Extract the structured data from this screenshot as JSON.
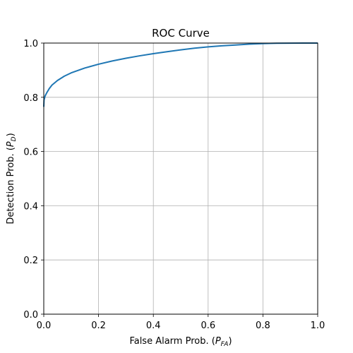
{
  "chart_data": {
    "type": "line",
    "title": "ROC Curve",
    "xlabel": {
      "main": "False Alarm Prob. (",
      "sym": "P",
      "sub": "FA",
      "close": ")"
    },
    "ylabel": {
      "main": "Detection Prob. (",
      "sym": "P",
      "sub": "D",
      "close": ")"
    },
    "xlim": [
      0.0,
      1.0
    ],
    "ylim": [
      0.0,
      1.0
    ],
    "xticks": [
      "0.0",
      "0.2",
      "0.4",
      "0.6",
      "0.8",
      "1.0"
    ],
    "yticks": [
      "0.0",
      "0.2",
      "0.4",
      "0.6",
      "0.8",
      "1.0"
    ],
    "grid": true,
    "series": [
      {
        "color": "#1f77b4",
        "x": [
          0.0,
          0.001,
          0.005,
          0.01,
          0.02,
          0.03,
          0.05,
          0.075,
          0.1,
          0.15,
          0.2,
          0.25,
          0.3,
          0.35,
          0.4,
          0.45,
          0.5,
          0.55,
          0.6,
          0.65,
          0.7,
          0.75,
          0.8,
          0.85,
          0.9,
          0.95,
          1.0
        ],
        "y": [
          0.765,
          0.79,
          0.805,
          0.815,
          0.832,
          0.845,
          0.862,
          0.878,
          0.89,
          0.908,
          0.922,
          0.934,
          0.944,
          0.953,
          0.961,
          0.968,
          0.975,
          0.981,
          0.986,
          0.99,
          0.993,
          0.996,
          0.998,
          0.9993,
          0.9998,
          1.0,
          1.0
        ]
      }
    ]
  }
}
